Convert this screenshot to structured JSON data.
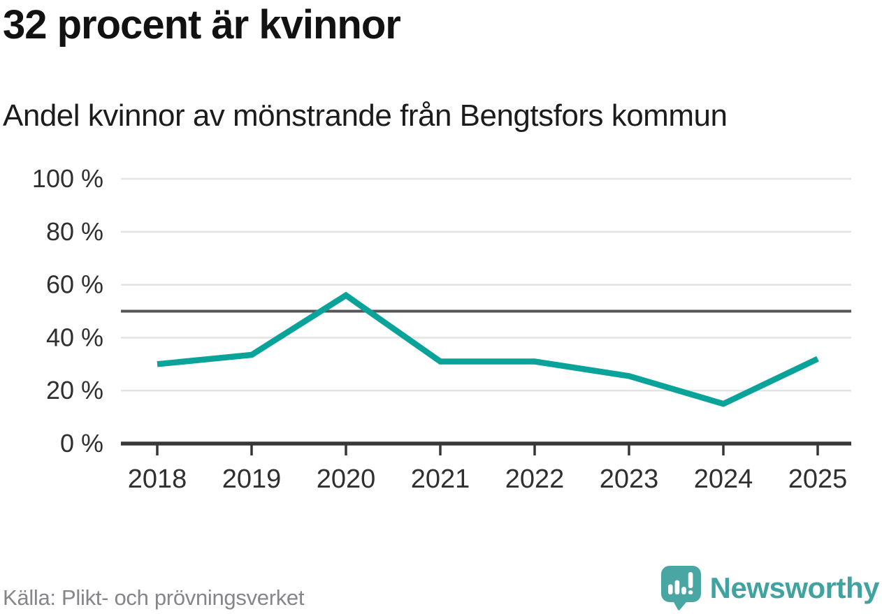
{
  "header": {
    "title": "32 procent är kvinnor",
    "subtitle": "Andel kvinnor av mönstrande från Bengtsfors kommun"
  },
  "chart_data": {
    "type": "line",
    "title": "32 procent är kvinnor",
    "subtitle": "Andel kvinnor av mönstrande från Bengtsfors kommun",
    "categories": [
      "2018",
      "2019",
      "2020",
      "2021",
      "2022",
      "2023",
      "2024",
      "2025"
    ],
    "series": [
      {
        "name": "Andel kvinnor av mönstrande",
        "values": [
          30,
          33.5,
          56,
          31,
          31,
          25.5,
          15,
          32
        ]
      }
    ],
    "unit": "%",
    "ylim": [
      0,
      100
    ],
    "y_ticks": [
      {
        "value": 100,
        "label": "100 %"
      },
      {
        "value": 80,
        "label": "80 %"
      },
      {
        "value": 60,
        "label": "60 %"
      },
      {
        "value": 40,
        "label": "40 %"
      },
      {
        "value": 20,
        "label": "20 %"
      },
      {
        "value": 0,
        "label": "0 %"
      }
    ],
    "reference_line": {
      "value": 50
    },
    "grid": "horizontal",
    "legend": "none"
  },
  "footer": {
    "source": "Källa: Plikt- och prövningsverket",
    "logo_text": "Newsworthy",
    "logo_icon": "newsworthy-bars-exclamation-bubble-icon"
  },
  "colors": {
    "line": "#0aa39a",
    "reference_line": "#55555a",
    "grid": "#e3e3e3",
    "axis": "#373737",
    "tick_label": "#2f2f2f",
    "title": "#121212",
    "subtitle": "#1c1c1c",
    "source": "#85858a",
    "logo_bubble": "#4aa6a3",
    "logo_glyph": "#ffffff",
    "logo_text": "#41a3a0"
  }
}
